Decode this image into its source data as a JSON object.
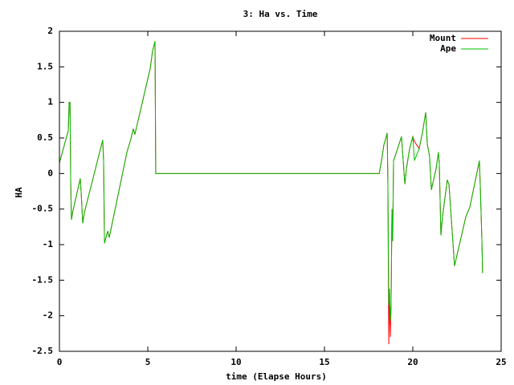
{
  "chart_data": {
    "type": "line",
    "title": "3: Ha vs. Time",
    "x_label": "time (Elapse Hours)",
    "y_label": "HA",
    "x": [
      0,
      0.5,
      0.55,
      0.6,
      0.64,
      0.68,
      0.77,
      1.18,
      1.23,
      1.32,
      1.41,
      2.45,
      2.5,
      2.55,
      2.73,
      2.82,
      3.82,
      4.05,
      4.18,
      4.27,
      5.14,
      5.27,
      5.41,
      5.45,
      18.1,
      18.23,
      18.36,
      18.5,
      18.55,
      18.59,
      18.64,
      18.68,
      18.73,
      18.77,
      18.82,
      18.86,
      18.91,
      19.14,
      19.36,
      19.55,
      19.64,
      19.82,
      20,
      20.09,
      20.36,
      20.55,
      20.73,
      20.82,
      20.95,
      21.05,
      21.32,
      21.45,
      21.5,
      21.59,
      21.68,
      21.95,
      22.05,
      22.36,
      23,
      23.23,
      23.77,
      23.82,
      23.91,
      23.95
    ],
    "series": [
      {
        "name": "Mount",
        "color": "#ff0000",
        "values": [
          0.15,
          0.6,
          1.0,
          1.0,
          -0.15,
          -0.65,
          -0.52,
          -0.07,
          -0.27,
          -0.7,
          -0.55,
          0.47,
          0.18,
          -0.98,
          -0.81,
          -0.9,
          0.3,
          0.49,
          0.63,
          0.55,
          1.48,
          1.72,
          1.86,
          0,
          0,
          0.18,
          0.4,
          0.52,
          0.57,
          -0.15,
          -2.4,
          -1.62,
          -2.3,
          -1.85,
          -0.5,
          -0.95,
          0.18,
          0.35,
          0.52,
          -0.15,
          0.07,
          0.35,
          0.52,
          0.45,
          0.35,
          0.58,
          0.86,
          0.41,
          0.24,
          -0.23,
          0.07,
          0.3,
          0.13,
          -0.87,
          -0.61,
          -0.09,
          -0.16,
          -1.3,
          -0.61,
          -0.47,
          0.18,
          -0.18,
          -0.94,
          -1.4
        ]
      },
      {
        "name": "Ape",
        "color": "#00c000",
        "values": [
          0.15,
          0.6,
          1.0,
          1.0,
          -0.15,
          -0.65,
          -0.52,
          -0.07,
          -0.27,
          -0.7,
          -0.55,
          0.47,
          0.18,
          -0.98,
          -0.81,
          -0.9,
          0.3,
          0.49,
          0.63,
          0.55,
          1.48,
          1.72,
          1.86,
          0,
          0,
          0.18,
          0.4,
          0.52,
          0.57,
          -0.15,
          -1.85,
          -1.62,
          -2.07,
          -1.85,
          -0.5,
          -0.95,
          0.18,
          0.35,
          0.52,
          -0.15,
          0.07,
          0.35,
          0.52,
          0.18,
          0.35,
          0.58,
          0.86,
          0.41,
          0.24,
          -0.23,
          0.07,
          0.3,
          0.13,
          -0.87,
          -0.61,
          -0.09,
          -0.16,
          -1.3,
          -0.61,
          -0.47,
          0.18,
          -0.18,
          -0.94,
          -1.4
        ]
      }
    ],
    "xlim": [
      0,
      25
    ],
    "xticks": [
      0,
      5,
      10,
      15,
      20,
      25
    ],
    "ylim": [
      -2.5,
      2
    ],
    "yticks": [
      -2.5,
      -2,
      -1.5,
      -1,
      -0.5,
      0,
      0.5,
      1,
      1.5,
      2
    ],
    "legend": "upper right"
  }
}
